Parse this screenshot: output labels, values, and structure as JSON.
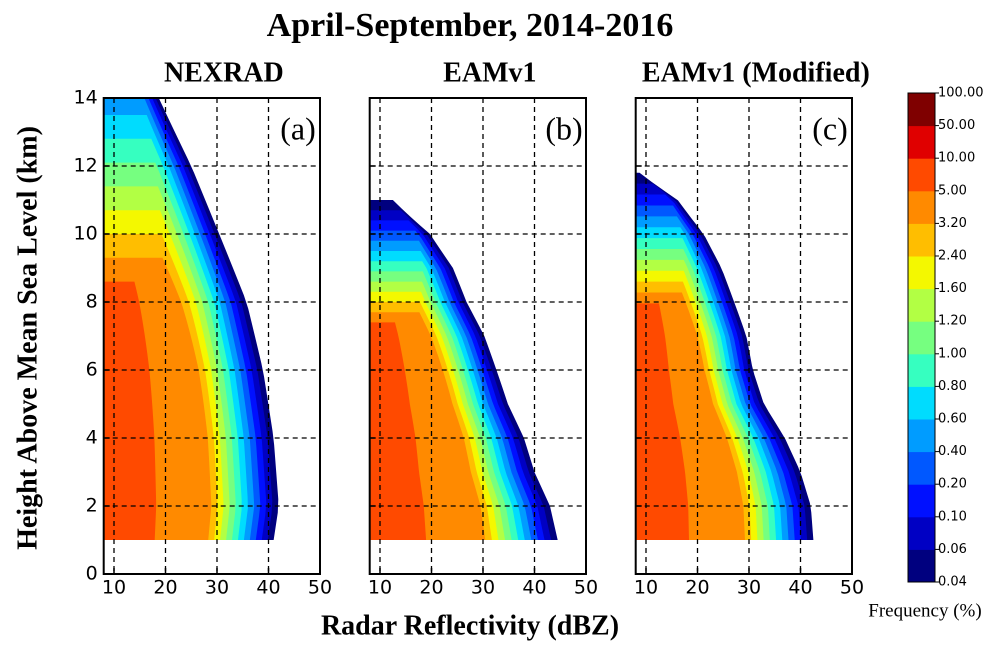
{
  "title": "April-September, 2014-2016",
  "xlabel": "Radar Reflectivity (dBZ)",
  "ylabel": "Height Above Mean Sea Level (km)",
  "colorbar": {
    "label": "Frequency (%)",
    "levels": [
      {
        "value": 0.04,
        "label": "0.04"
      },
      {
        "value": 0.06,
        "label": "0.06"
      },
      {
        "value": 0.1,
        "label": "0.10"
      },
      {
        "value": 0.2,
        "label": "0.20"
      },
      {
        "value": 0.4,
        "label": "0.40"
      },
      {
        "value": 0.6,
        "label": "0.60"
      },
      {
        "value": 0.8,
        "label": "0.80"
      },
      {
        "value": 1,
        "label": "1.00"
      },
      {
        "value": 1.2,
        "label": "1.20"
      },
      {
        "value": 1.6,
        "label": "1.60"
      },
      {
        "value": 2.4,
        "label": "2.40"
      },
      {
        "value": 3.2,
        "label": "3.20"
      },
      {
        "value": 5,
        "label": "5.00"
      },
      {
        "value": 10,
        "label": "10.00"
      },
      {
        "value": 50,
        "label": "50.00"
      },
      {
        "value": 100,
        "label": "100.00"
      }
    ],
    "colors": [
      "#00007f",
      "#0000c4",
      "#0010ff",
      "#0058ff",
      "#009cff",
      "#00dcfe",
      "#36ffc0",
      "#76ff80",
      "#b2ff44",
      "#f4f800",
      "#ffbe00",
      "#ff8a00",
      "#ff4a00",
      "#e00000",
      "#7f0000"
    ]
  },
  "chart_data": [
    {
      "type": "contour",
      "title": "NEXRAD",
      "panel_label": "(a)",
      "xlim": [
        8,
        50
      ],
      "ylim": [
        0,
        14
      ],
      "xticks": [
        10,
        20,
        30,
        40,
        50
      ],
      "yticks": [
        0,
        2,
        4,
        6,
        8,
        10,
        12,
        14
      ],
      "grid": true
    },
    {
      "type": "contour",
      "title": "EAMv1",
      "panel_label": "(b)",
      "xlim": [
        8,
        50
      ],
      "ylim": [
        0,
        14
      ],
      "xticks": [
        10,
        20,
        30,
        40,
        50
      ],
      "yticks": [
        0,
        2,
        4,
        6,
        8,
        10,
        12,
        14
      ],
      "grid": true
    },
    {
      "type": "contour",
      "title": "EAMv1 (Modified)",
      "panel_label": "(c)",
      "xlim": [
        8,
        50
      ],
      "ylim": [
        0,
        14
      ],
      "xticks": [
        10,
        20,
        30,
        40,
        50
      ],
      "yticks": [
        0,
        2,
        4,
        6,
        8,
        10,
        12,
        14
      ],
      "grid": true
    }
  ]
}
